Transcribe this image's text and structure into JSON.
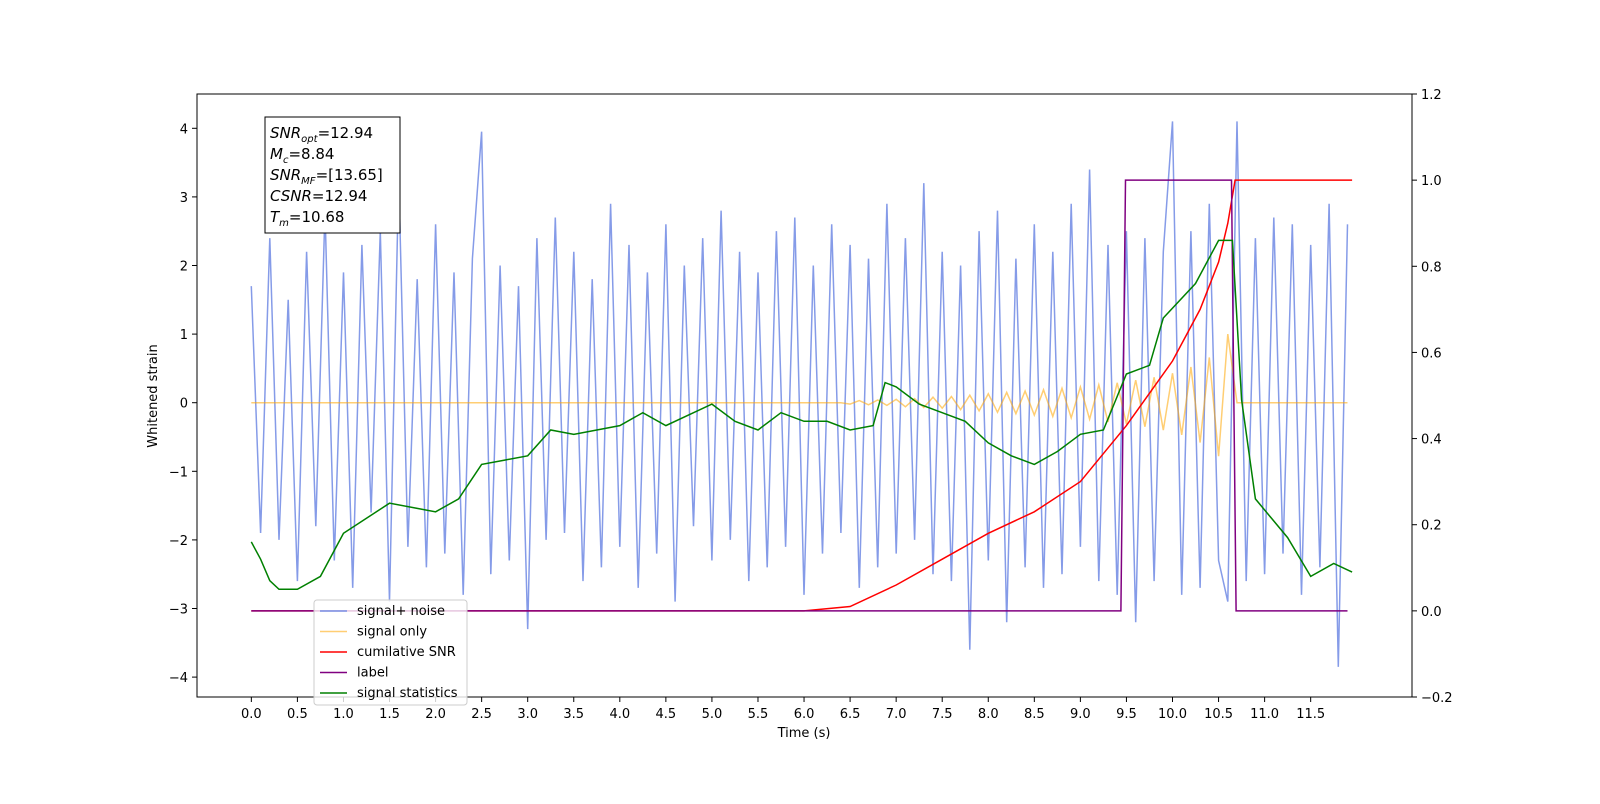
{
  "chart_data": {
    "type": "line",
    "xlabel": "Time (s)",
    "ylabel": "Whitened strain",
    "xlim": [
      -0.59,
      12.6
    ],
    "ylim": [
      -4.29,
      4.5
    ],
    "y2lim": [
      -0.2,
      1.2
    ],
    "xticks": [
      {
        "value": 0,
        "label": "0.0"
      },
      0.5,
      {
        "value": 1,
        "label": "1.0"
      },
      1.5,
      {
        "value": 2,
        "label": "2.0"
      },
      2.5,
      {
        "value": 3,
        "label": "3.0"
      },
      3.5,
      {
        "value": 4,
        "label": "4.0"
      },
      4.5,
      {
        "value": 5,
        "label": "5.0"
      },
      5.5,
      {
        "value": 6,
        "label": "6.0"
      },
      6.5,
      {
        "value": 7,
        "label": "7.0"
      },
      7.5,
      {
        "value": 8,
        "label": "8.0"
      },
      8.5,
      {
        "value": 9,
        "label": "9.0"
      },
      9.5,
      {
        "value": 10,
        "label": "10.0"
      },
      10.5,
      {
        "value": 11,
        "label": "11.0"
      },
      11.5
    ],
    "yticks": [
      {
        "value": -4,
        "label": "−4"
      },
      {
        "value": -3,
        "label": "−3"
      },
      {
        "value": -2,
        "label": "−2"
      },
      {
        "value": -1,
        "label": "−1"
      },
      0,
      1,
      2,
      3,
      4
    ],
    "y2ticks": [
      {
        "value": -0.2,
        "label": "−0.2"
      },
      {
        "value": 0,
        "label": "0.0"
      },
      0.2,
      0.4,
      0.6,
      0.8,
      {
        "value": 1,
        "label": "1.0"
      },
      {
        "value": 1.2,
        "label": "1.2"
      }
    ],
    "x": [
      0,
      0.1,
      0.2,
      0.3,
      0.4,
      0.5,
      0.6,
      0.7,
      0.8,
      0.9,
      1,
      1.1,
      1.2,
      1.3,
      1.4,
      1.5,
      1.6,
      1.7,
      1.8,
      1.9,
      2,
      2.1,
      2.2,
      2.3,
      2.4,
      2.5,
      2.6,
      2.7,
      2.8,
      2.9,
      3,
      3.1,
      3.2,
      3.3,
      3.4,
      3.5,
      3.6,
      3.7,
      3.8,
      3.9,
      4,
      4.1,
      4.2,
      4.3,
      4.4,
      4.5,
      4.6,
      4.7,
      4.8,
      4.9,
      5,
      5.1,
      5.2,
      5.3,
      5.4,
      5.5,
      5.6,
      5.7,
      5.8,
      5.9,
      6,
      6.1,
      6.2,
      6.3,
      6.4,
      6.5,
      6.6,
      6.7,
      6.8,
      6.9,
      7,
      7.1,
      7.2,
      7.3,
      7.4,
      7.5,
      7.6,
      7.7,
      7.8,
      7.9,
      8,
      8.1,
      8.2,
      8.3,
      8.4,
      8.5,
      8.6,
      8.7,
      8.8,
      8.9,
      9,
      9.1,
      9.2,
      9.3,
      9.4,
      9.5,
      9.6,
      9.7,
      9.8,
      9.9,
      10,
      10.1,
      10.2,
      10.3,
      10.4,
      10.5,
      10.6,
      10.7,
      10.8,
      10.9,
      11,
      11.1,
      11.2,
      11.3,
      11.4,
      11.5,
      11.6,
      11.7,
      11.8,
      11.9
    ],
    "series": [
      {
        "name": "signal+ noise",
        "color": "#7890e6",
        "axis": "y",
        "values": [
          1.7,
          -1.9,
          2.4,
          -2.0,
          1.5,
          -2.6,
          2.2,
          -1.8,
          2.8,
          -2.3,
          1.9,
          -2.7,
          2.3,
          -1.6,
          2.5,
          -2.9,
          3.3,
          -2.1,
          1.8,
          -2.4,
          2.6,
          -2.2,
          1.9,
          -2.8,
          2.1,
          3.95,
          -2.5,
          2.0,
          -2.3,
          1.7,
          -3.3,
          2.4,
          -2.0,
          2.7,
          -1.9,
          2.2,
          -2.6,
          1.8,
          -2.4,
          2.9,
          -2.1,
          2.3,
          -2.7,
          1.9,
          -2.2,
          2.6,
          -2.9,
          2.0,
          -1.8,
          2.4,
          -2.3,
          2.8,
          -2.0,
          2.2,
          -2.6,
          1.9,
          -2.4,
          2.5,
          -2.1,
          2.7,
          -2.8,
          2.0,
          -2.2,
          2.6,
          -1.9,
          2.3,
          -2.7,
          2.1,
          -2.4,
          2.9,
          -2.2,
          2.4,
          -2.0,
          3.2,
          -2.5,
          2.2,
          -2.6,
          2.0,
          -3.6,
          2.5,
          -2.3,
          2.8,
          -3.2,
          2.1,
          -2.4,
          2.6,
          -2.7,
          2.2,
          -2.5,
          2.9,
          -2.1,
          3.4,
          -2.6,
          2.3,
          -2.8,
          2.5,
          -3.2,
          2.4,
          -2.6,
          2.2,
          4.1,
          -2.8,
          2.5,
          -2.7,
          2.9,
          -2.3,
          -2.9,
          4.1,
          -2.6,
          2.4,
          -2.5,
          2.7,
          -2.2,
          2.6,
          -2.8,
          2.3,
          -2.4,
          2.9,
          -3.85,
          2.6
        ]
      },
      {
        "name": "signal only",
        "color": "#ffa500",
        "axis": "y",
        "values": [
          0,
          0,
          0,
          0,
          0,
          0,
          0,
          0,
          0,
          0,
          0,
          0,
          0,
          0,
          0,
          0,
          0,
          0,
          0,
          0,
          0,
          0,
          0,
          0,
          0,
          0,
          0,
          0,
          0,
          0,
          0,
          0,
          0,
          0,
          0,
          0,
          0,
          0,
          0,
          0,
          0,
          0,
          0,
          0,
          0,
          0,
          0,
          0,
          0,
          0,
          0,
          0,
          0,
          0,
          0,
          0,
          0,
          0,
          0,
          0,
          0,
          0,
          0,
          0,
          0,
          -0.02,
          0.03,
          -0.03,
          0.04,
          -0.04,
          0.05,
          -0.06,
          0.06,
          -0.07,
          0.08,
          -0.08,
          0.09,
          -0.1,
          0.11,
          -0.12,
          0.13,
          -0.14,
          0.15,
          -0.16,
          0.17,
          -0.18,
          0.19,
          -0.2,
          0.21,
          -0.22,
          0.23,
          -0.24,
          0.26,
          -0.28,
          0.29,
          -0.31,
          0.33,
          -0.35,
          0.37,
          -0.4,
          0.43,
          -0.47,
          0.52,
          -0.58,
          0.66,
          -0.78,
          1.0,
          0,
          0,
          0,
          0,
          0,
          0,
          0,
          0,
          0,
          0,
          0,
          0,
          0
        ]
      },
      {
        "name": "cumilative SNR",
        "color": "#ff0000",
        "axis": "y2",
        "x": [
          0,
          6.0,
          6.5,
          7.0,
          7.5,
          8.0,
          8.5,
          9.0,
          9.5,
          10.0,
          10.3,
          10.5,
          10.6,
          10.68,
          11.95
        ],
        "values": [
          0,
          0,
          0.01,
          0.06,
          0.12,
          0.18,
          0.23,
          0.3,
          0.43,
          0.58,
          0.7,
          0.81,
          0.9,
          1.0,
          1.0
        ]
      },
      {
        "name": "label",
        "color": "#800080",
        "axis": "y2",
        "x": [
          0,
          9.44,
          9.49,
          10.64,
          10.69,
          11.9
        ],
        "values": [
          0,
          0,
          1,
          1,
          0,
          0
        ]
      },
      {
        "name": "signal statistics",
        "color": "#008000",
        "axis": "y2",
        "x": [
          0,
          0.1,
          0.2,
          0.3,
          0.5,
          0.75,
          1.0,
          1.5,
          2.0,
          2.25,
          2.5,
          2.75,
          3.0,
          3.25,
          3.5,
          3.75,
          4.0,
          4.25,
          4.5,
          5.0,
          5.25,
          5.5,
          5.75,
          6.0,
          6.25,
          6.5,
          6.75,
          6.88,
          7.0,
          7.25,
          7.5,
          7.75,
          8.0,
          8.25,
          8.5,
          8.75,
          9.0,
          9.25,
          9.5,
          9.75,
          9.9,
          10.25,
          10.5,
          10.65,
          10.75,
          10.9,
          11.25,
          11.5,
          11.75,
          11.95
        ],
        "values": [
          0.16,
          0.12,
          0.07,
          0.05,
          0.05,
          0.08,
          0.18,
          0.25,
          0.23,
          0.26,
          0.34,
          0.35,
          0.36,
          0.42,
          0.41,
          0.42,
          0.43,
          0.46,
          0.43,
          0.48,
          0.44,
          0.42,
          0.46,
          0.44,
          0.44,
          0.42,
          0.43,
          0.53,
          0.52,
          0.48,
          0.46,
          0.44,
          0.39,
          0.36,
          0.34,
          0.37,
          0.41,
          0.42,
          0.55,
          0.57,
          0.68,
          0.76,
          0.86,
          0.86,
          0.49,
          0.26,
          0.17,
          0.08,
          0.11,
          0.09
        ]
      }
    ],
    "annotation": [
      {
        "symbol": "SNR",
        "sub": "opt",
        "text": "=12.94"
      },
      {
        "symbol": "M",
        "sub": "c",
        "text": "=8.84"
      },
      {
        "symbol": "SNR",
        "sub": "MF",
        "text": "=[13.65]"
      },
      {
        "symbol": "CSNR",
        "text": "=12.94"
      },
      {
        "symbol": "T",
        "sub": "m",
        "text": "=10.68"
      }
    ]
  }
}
